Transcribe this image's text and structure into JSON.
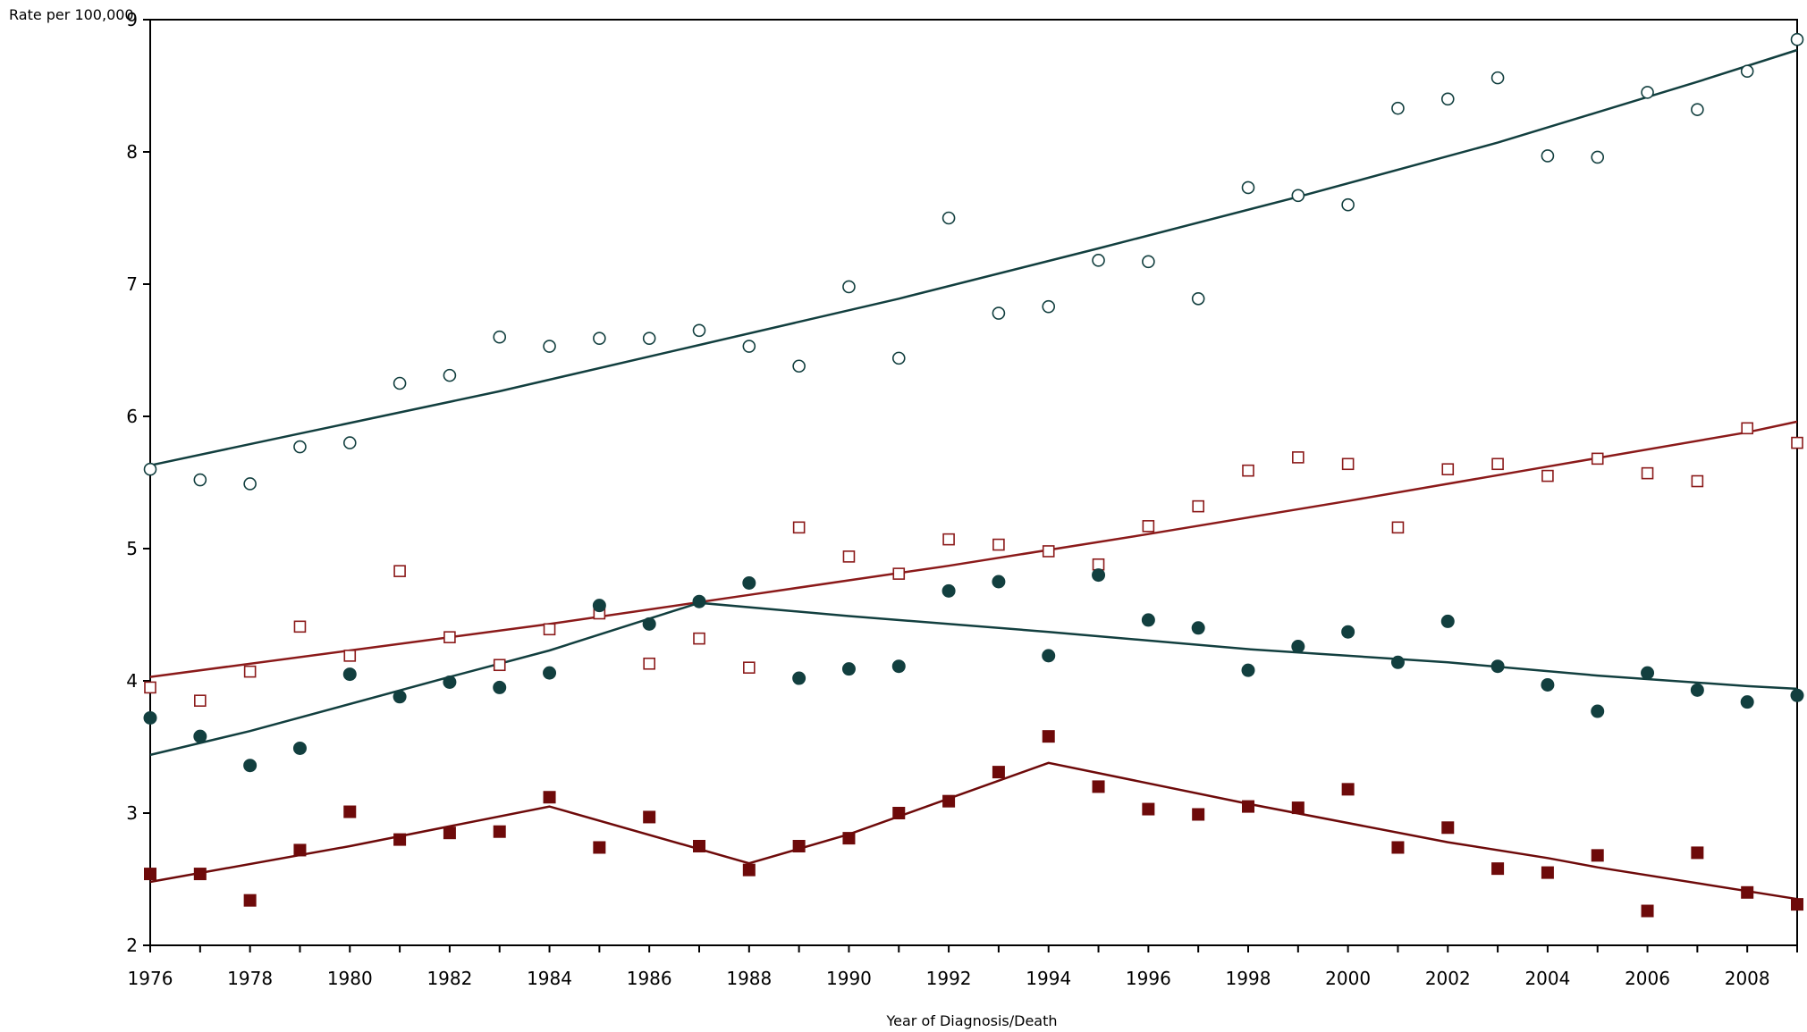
{
  "chart_data": {
    "type": "scatter",
    "title": "",
    "xlabel": "Year of Diagnosis/Death",
    "ylabel": "Rate per 100,000",
    "xlim": [
      1976,
      2009
    ],
    "ylim": [
      2,
      9
    ],
    "x_ticks": [
      1976,
      1978,
      1980,
      1982,
      1984,
      1986,
      1988,
      1990,
      1992,
      1994,
      1996,
      1998,
      2000,
      2002,
      2004,
      2006,
      2008
    ],
    "y_ticks": [
      2,
      3,
      4,
      5,
      6,
      7,
      8,
      9
    ],
    "grid": false,
    "legend": "none",
    "x": [
      1976,
      1977,
      1978,
      1979,
      1980,
      1981,
      1982,
      1983,
      1984,
      1985,
      1986,
      1987,
      1988,
      1989,
      1990,
      1991,
      1992,
      1993,
      1994,
      1995,
      1996,
      1997,
      1998,
      1999,
      2000,
      2001,
      2002,
      2003,
      2004,
      2005,
      2006,
      2007,
      2008,
      2009
    ],
    "series": [
      {
        "marker": "open-circle",
        "color": "#123f3f",
        "values": [
          5.6,
          5.52,
          5.49,
          5.77,
          5.8,
          6.25,
          6.31,
          6.6,
          6.53,
          6.59,
          6.59,
          6.65,
          6.53,
          6.38,
          6.98,
          6.44,
          7.5,
          6.78,
          6.83,
          7.18,
          7.17,
          6.89,
          7.73,
          7.67,
          7.6,
          8.33,
          8.4,
          8.56,
          7.97,
          7.96,
          8.45,
          8.32,
          8.61,
          8.85
        ],
        "trend": [
          [
            1976,
            5.63
          ],
          [
            1979,
            5.87
          ],
          [
            1983,
            6.19
          ],
          [
            1987,
            6.54
          ],
          [
            1991,
            6.89
          ],
          [
            1995,
            7.27
          ],
          [
            1999,
            7.66
          ],
          [
            2003,
            8.07
          ],
          [
            2007,
            8.53
          ],
          [
            2009,
            8.77
          ]
        ]
      },
      {
        "marker": "open-square",
        "color": "#8b1a1a",
        "values": [
          3.95,
          3.85,
          4.07,
          4.41,
          4.19,
          4.83,
          4.33,
          4.12,
          4.39,
          4.51,
          4.13,
          4.32,
          4.1,
          5.16,
          4.94,
          4.81,
          5.07,
          5.03,
          4.98,
          4.88,
          5.17,
          5.32,
          5.59,
          5.69,
          5.64,
          5.16,
          5.6,
          5.64,
          5.55,
          5.68,
          5.57,
          5.51,
          5.91,
          5.8
        ],
        "trend": [
          [
            1976,
            4.03
          ],
          [
            1980,
            4.23
          ],
          [
            1984,
            4.43
          ],
          [
            1988,
            4.65
          ],
          [
            1992,
            4.87
          ],
          [
            1996,
            5.11
          ],
          [
            2000,
            5.36
          ],
          [
            2004,
            5.62
          ],
          [
            2008,
            5.88
          ],
          [
            2009,
            5.96
          ]
        ]
      },
      {
        "marker": "filled-circle",
        "color": "#123f3f",
        "values": [
          3.72,
          3.58,
          3.36,
          3.49,
          4.05,
          3.88,
          3.99,
          3.95,
          4.06,
          4.57,
          4.43,
          4.6,
          4.74,
          4.02,
          4.09,
          4.11,
          4.68,
          4.75,
          4.19,
          4.8,
          4.46,
          4.4,
          4.08,
          4.26,
          4.37,
          4.14,
          4.45,
          4.11,
          3.97,
          3.77,
          4.06,
          3.93,
          3.84,
          3.89
        ],
        "trend": [
          [
            1976,
            3.44
          ],
          [
            1978,
            3.62
          ],
          [
            1982,
            4.03
          ],
          [
            1984,
            4.23
          ],
          [
            1987,
            4.59
          ],
          [
            1990,
            4.49
          ],
          [
            1994,
            4.37
          ],
          [
            1998,
            4.24
          ],
          [
            2002,
            4.14
          ],
          [
            2005,
            4.04
          ],
          [
            2008,
            3.96
          ],
          [
            2009,
            3.94
          ]
        ]
      },
      {
        "marker": "filled-square",
        "color": "#6e0a0a",
        "values": [
          2.54,
          2.54,
          2.34,
          2.72,
          3.01,
          2.8,
          2.85,
          2.86,
          3.12,
          2.74,
          2.97,
          2.75,
          2.57,
          2.75,
          2.81,
          3.0,
          3.09,
          3.31,
          3.58,
          3.2,
          3.03,
          2.99,
          3.05,
          3.04,
          3.18,
          2.74,
          2.89,
          2.58,
          2.55,
          2.68,
          2.26,
          2.7,
          2.4,
          2.31
        ],
        "trend": [
          [
            1976,
            2.48
          ],
          [
            1980,
            2.75
          ],
          [
            1984,
            3.05
          ],
          [
            1988,
            2.62
          ],
          [
            1990,
            2.84
          ],
          [
            1994,
            3.38
          ],
          [
            1998,
            3.07
          ],
          [
            2002,
            2.78
          ],
          [
            2004,
            2.66
          ],
          [
            2005,
            2.59
          ],
          [
            2009,
            2.35
          ]
        ]
      }
    ]
  }
}
